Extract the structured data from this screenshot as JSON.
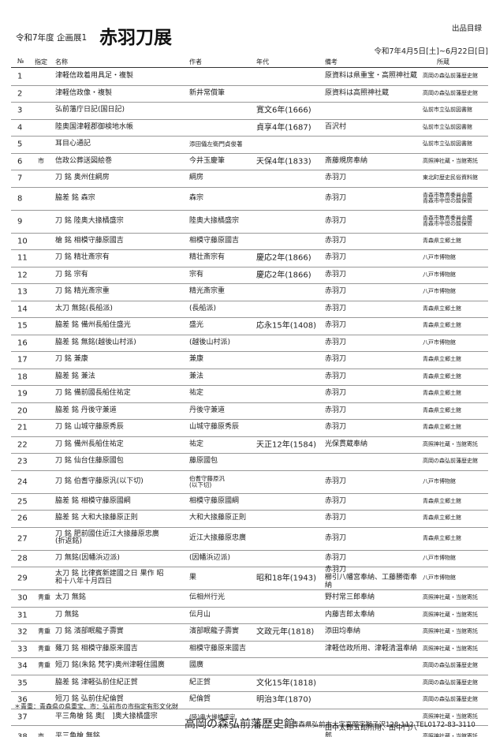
{
  "header": {
    "subtitle": "令和7年度 企画展1",
    "title": "赤羽刀展",
    "label": "出品目録",
    "period": "令和7年4月5日[土]~6月22日[日]"
  },
  "columns": {
    "no": "№",
    "designation": "指定",
    "name": "名称",
    "author": "作者",
    "era": "年代",
    "note": "備考",
    "owner": "所蔵"
  },
  "rows": [
    {
      "no": "1",
      "d": "",
      "name": "津軽信政着用具足・複製",
      "author": "",
      "era": "",
      "note": "原資料は県重宝・高照神社蔵",
      "owner": "高岡の森弘前藩歴史館"
    },
    {
      "no": "2",
      "d": "",
      "name": "津軽信政像・複製",
      "author": "新井常償筆",
      "era": "",
      "note": "原資料は高照神社蔵",
      "owner": "高岡の森弘前藩歴史館"
    },
    {
      "no": "3",
      "d": "",
      "name": "弘前藩庁日記(国日記)",
      "author": "",
      "era": "寛文6年(1666)",
      "note": "",
      "owner": "弘前市立弘前図書館"
    },
    {
      "no": "4",
      "d": "",
      "name": "陸奥国津軽郡御検地水帳",
      "author": "",
      "era": "貞享4年(1687)",
      "note": "百沢村",
      "owner": "弘前市立弘前図書館"
    },
    {
      "no": "5",
      "d": "",
      "name": "耳目心通記",
      "author": "添田儀左衛門貞俊著",
      "era": "",
      "note": "",
      "owner": "弘前市立弘前図書館"
    },
    {
      "no": "6",
      "d": "市",
      "name": "信政公葬送図絵巻",
      "author": "今井玉慶筆",
      "era": "天保4年(1833)",
      "note": "斎藤規房奉納",
      "owner": "高照神社蔵・当館寄託"
    },
    {
      "no": "7",
      "d": "",
      "name": "刀 銘 奥州住綱房",
      "author": "綱房",
      "era": "",
      "note": "赤羽刀",
      "owner": "東北町歴史民俗資料館"
    },
    {
      "no": "8",
      "d": "",
      "name": "脇差 銘 森宗",
      "author": "森宗",
      "era": "",
      "note": "赤羽刀",
      "owner": "青森市教育委員会蔵\n青森市中世の館保管"
    },
    {
      "no": "9",
      "d": "",
      "name": "刀 銘 陸奥大掾橘盛宗",
      "author": "陸奥大掾橘盛宗",
      "era": "",
      "note": "赤羽刀",
      "owner": "青森市教育委員会蔵\n青森市中世の館保管"
    },
    {
      "no": "10",
      "d": "",
      "name": "槍 銘 相模守藤原國吉",
      "author": "相模守藤原國吉",
      "era": "",
      "note": "赤羽刀",
      "owner": "青森県立郷土館"
    },
    {
      "no": "11",
      "d": "",
      "name": "刀 銘 精壮斎宗有",
      "author": "精壮斎宗有",
      "era": "慶応2年(1866)",
      "note": "赤羽刀",
      "owner": "八戸市博物館"
    },
    {
      "no": "12",
      "d": "",
      "name": "刀 銘 宗有",
      "author": "宗有",
      "era": "慶応2年(1866)",
      "note": "赤羽刀",
      "owner": "八戸市博物館"
    },
    {
      "no": "13",
      "d": "",
      "name": "刀 銘 精光斎宗重",
      "author": "精光斎宗重",
      "era": "",
      "note": "赤羽刀",
      "owner": "八戸市博物館"
    },
    {
      "no": "14",
      "d": "",
      "name": "太刀 無銘(長船派)",
      "author": "(長船派)",
      "era": "",
      "note": "赤羽刀",
      "owner": "青森県立郷土館"
    },
    {
      "no": "15",
      "d": "",
      "name": "脇差 銘 備州長船住盛光",
      "author": "盛光",
      "era": "応永15年(1408)",
      "note": "赤羽刀",
      "owner": "青森県立郷土館"
    },
    {
      "no": "16",
      "d": "",
      "name": "脇差 銘 無銘(越後山村派)",
      "author": "(越後山村派)",
      "era": "",
      "note": "赤羽刀",
      "owner": "八戸市博物館"
    },
    {
      "no": "17",
      "d": "",
      "name": "刀 銘 兼康",
      "author": "兼康",
      "era": "",
      "note": "赤羽刀",
      "owner": "青森県立郷土館"
    },
    {
      "no": "18",
      "d": "",
      "name": "脇差 銘 兼法",
      "author": "兼法",
      "era": "",
      "note": "赤羽刀",
      "owner": "青森県立郷土館"
    },
    {
      "no": "19",
      "d": "",
      "name": "刀 銘 備前國長船住祐定",
      "author": "祐定",
      "era": "",
      "note": "赤羽刀",
      "owner": "青森県立郷土館"
    },
    {
      "no": "20",
      "d": "",
      "name": "脇差 銘 丹後守兼道",
      "author": "丹後守兼道",
      "era": "",
      "note": "赤羽刀",
      "owner": "青森県立郷土館"
    },
    {
      "no": "21",
      "d": "",
      "name": "刀 銘 山城守藤原秀辰",
      "author": "山城守藤原秀辰",
      "era": "",
      "note": "赤羽刀",
      "owner": "青森県立郷土館"
    },
    {
      "no": "22",
      "d": "",
      "name": "刀 銘 備州長船住祐定",
      "author": "祐定",
      "era": "天正12年(1584)",
      "note": "光保貫蔵奉納",
      "owner": "高照神社蔵・当館寄託"
    },
    {
      "no": "23",
      "d": "",
      "name": "刀 銘 仙台住藤原國包",
      "author": "藤原國包",
      "era": "",
      "note": "",
      "owner": "高岡の森弘前藩歴史館"
    },
    {
      "no": "24",
      "d": "",
      "name": "刀 銘 伯耆守藤原汎(以下切)",
      "author": "伯耆守藤原汎\n(以下切)",
      "era": "",
      "note": "赤羽刀",
      "owner": "八戸市博物館"
    },
    {
      "no": "25",
      "d": "",
      "name": "脇差 銘 相模守藤原國綱",
      "author": "相模守藤原國綱",
      "era": "",
      "note": "赤羽刀",
      "owner": "青森県立郷土館"
    },
    {
      "no": "26",
      "d": "",
      "name": "脇差 銘 大和大掾藤原正則",
      "author": "大和大掾藤原正則",
      "era": "",
      "note": "赤羽刀",
      "owner": "青森県立郷土館"
    },
    {
      "no": "27",
      "d": "",
      "name": "刀 銘 肥前國住近江大掾藤原忠廣\n(折返銘)",
      "author": "近江大掾藤原忠廣",
      "era": "",
      "note": "赤羽刀",
      "owner": "青森県立郷土館"
    },
    {
      "no": "28",
      "d": "",
      "name": "刀 無銘(因幡浜辺派)",
      "author": "(因幡浜辺派)",
      "era": "",
      "note": "赤羽刀",
      "owner": "八戸市博物館"
    },
    {
      "no": "29",
      "d": "",
      "name": "太刀 銘 比律賓新建國之日 果作 昭\n和十八年十月四日",
      "author": "果",
      "era": "昭和18年(1943)",
      "note": "赤羽刀\n櫛引八幡宮奉納、工藤勝衛奉納",
      "owner": "八戸市博物館"
    },
    {
      "no": "30",
      "d": "青重",
      "name": "太刀 無銘",
      "author": "伝相州行光",
      "era": "",
      "note": "野村常三郎奉納",
      "owner": "高照神社蔵・当館寄託"
    },
    {
      "no": "31",
      "d": "",
      "name": "刀 無銘",
      "author": "伝月山",
      "era": "",
      "note": "内藤吉郎太奉納",
      "owner": "高照神社蔵・当館寄託"
    },
    {
      "no": "32",
      "d": "青重",
      "name": "刀 銘 濱部眠龍子壽實",
      "author": "濱部眠龍子壽實",
      "era": "文政元年(1818)",
      "note": "添田均奉納",
      "owner": "高照神社蔵・当館寄託"
    },
    {
      "no": "33",
      "d": "青重",
      "name": "薙刀 銘 相模守藤原来國吉",
      "author": "相模守藤原来國吉",
      "era": "",
      "note": "津軽信政所用、津軽清温奉納",
      "owner": "高照神社蔵・当館寄託"
    },
    {
      "no": "34",
      "d": "青重",
      "name": "短刀 銘(朱銘 梵字)奥州津軽住國廣",
      "author": "國廣",
      "era": "",
      "note": "",
      "owner": "高岡の森弘前藩歴史館"
    },
    {
      "no": "35",
      "d": "",
      "name": "脇差 銘 津軽弘前住紀正賀",
      "author": "紀正賀",
      "era": "文化15年(1818)",
      "note": "",
      "owner": "高岡の森弘前藩歴史館"
    },
    {
      "no": "36",
      "d": "",
      "name": "短刀 銘 弘前住紀倫賀",
      "author": "紀倫賀",
      "era": "明治3年(1870)",
      "note": "",
      "owner": "高岡の森弘前藩歴史館"
    },
    {
      "no": "37",
      "d": "",
      "name": "平三角槍 銘 奥[　]奥大掾橘盛宗",
      "author": "(陸)奥大掾橘盛宗",
      "era": "",
      "note": "",
      "owner": "高照神社蔵・当館寄託"
    },
    {
      "no": "38",
      "d": "市",
      "name": "平三角槍 無銘",
      "author": "",
      "era": "",
      "note": "田中太郎五郎所用、田中門八郎\n奉納、槍柄・槍鞘と組み合う",
      "owner": "高照神社蔵・当館寄託"
    }
  ],
  "footer": {
    "note": "＊青重：青森県の県重宝、市：弘前市の市指定有形文化財",
    "museum": "高岡の森弘前藩歴史館",
    "address": "青森県弘前市大字高岡字獅子沢128-112  TEL0172-83-3110"
  }
}
